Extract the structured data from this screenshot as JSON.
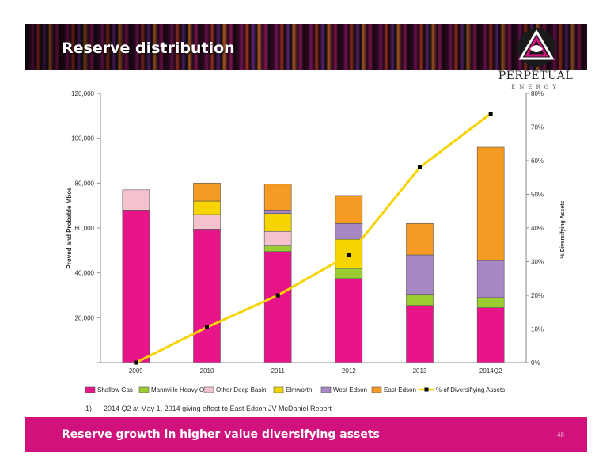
{
  "slide": {
    "title": "Reserve distribution",
    "footnote_marker": "1)",
    "footnote": "2014 Q2 at May 1, 2014 giving effect to East Edson JV McDaniel Report",
    "bottom_banner": "Reserve growth in higher value diversifying assets",
    "page_number": "48"
  },
  "logo": {
    "name": "PERPETUAL",
    "sub": "ENERGY",
    "mark_icon": "triangle-swirl-logo-icon"
  },
  "colors": {
    "banner_pink": "#d1117c",
    "shallow_gas": "#e8158a",
    "mannville": "#9acd32",
    "other_deep_basin": "#f4c2cc",
    "elmworth": "#f5d400",
    "west_edson": "#a787c4",
    "east_edson": "#f59a23",
    "line": "#f5d400"
  },
  "chart_data": {
    "type": "bar",
    "stacked": true,
    "categories": [
      "2009",
      "2010",
      "2011",
      "2012",
      "2013",
      "2014Q2"
    ],
    "ylabel": "Proved and Probable Mboe",
    "y2label": "% Diversifying Assets",
    "ylim": [
      0,
      120000
    ],
    "y2lim": [
      0,
      80
    ],
    "yticks": [
      "-",
      "20,000",
      "40,000",
      "60,000",
      "80,000",
      "100,000",
      "120,000"
    ],
    "y2ticks": [
      "0%",
      "10%",
      "20%",
      "30%",
      "40%",
      "50%",
      "60%",
      "70%",
      "80%"
    ],
    "grid": false,
    "legend_position": "bottom",
    "series": [
      {
        "name": "Shallow Gas",
        "color": "#e8158a",
        "values": [
          68000,
          59500,
          49500,
          37500,
          25500,
          24500
        ]
      },
      {
        "name": "Mannville Heavy Oil",
        "color": "#9acd32",
        "values": [
          0,
          0,
          2500,
          4500,
          5000,
          4500
        ]
      },
      {
        "name": "Other Deep Basin",
        "color": "#f4c2cc",
        "values": [
          9000,
          6500,
          6500,
          0,
          0,
          0
        ]
      },
      {
        "name": "Elmworth",
        "color": "#f5d400",
        "values": [
          0,
          6000,
          8000,
          13000,
          0,
          0
        ]
      },
      {
        "name": "West Edson",
        "color": "#a787c4",
        "values": [
          0,
          0,
          1500,
          7000,
          17500,
          16500
        ]
      },
      {
        "name": "East Edson",
        "color": "#f59a23",
        "values": [
          0,
          8000,
          11500,
          12500,
          14000,
          50500
        ]
      }
    ],
    "line": {
      "name": "% of Diversifiying Assets",
      "color": "#f5d400",
      "axis": "y2",
      "values": [
        0,
        10.5,
        20,
        32,
        58,
        74
      ]
    }
  }
}
